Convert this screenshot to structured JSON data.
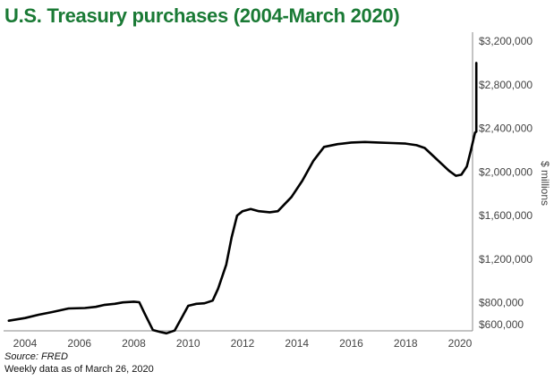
{
  "header": {
    "title": "U.S. Treasury purchases (2004-March 2020)"
  },
  "footer": {
    "source": "Source: FRED",
    "note": "Weekly data as of March 26, 2020"
  },
  "chart_data": {
    "type": "line",
    "ylabel": "$ millions",
    "xlim": [
      2003.4,
      2020.65
    ],
    "ylim": [
      520000,
      3200000
    ],
    "y_ticks": [
      {
        "value": 600000,
        "label": "$600,000"
      },
      {
        "value": 800000,
        "label": "$800,000"
      },
      {
        "value": 1200000,
        "label": "$1,200,000"
      },
      {
        "value": 1600000,
        "label": "$1,600,000"
      },
      {
        "value": 2000000,
        "label": "$2,000,000"
      },
      {
        "value": 2400000,
        "label": "$2,400,000"
      },
      {
        "value": 2800000,
        "label": "$2,800,000"
      },
      {
        "value": 3200000,
        "label": "$3,200,000"
      }
    ],
    "x_ticks": [
      {
        "value": 2004,
        "label": "2004"
      },
      {
        "value": 2006,
        "label": "2006"
      },
      {
        "value": 2008,
        "label": "2008"
      },
      {
        "value": 2010,
        "label": "2010"
      },
      {
        "value": 2012,
        "label": "2012"
      },
      {
        "value": 2014,
        "label": "2014"
      },
      {
        "value": 2016,
        "label": "2016"
      },
      {
        "value": 2018,
        "label": "2018"
      },
      {
        "value": 2020,
        "label": "2020"
      }
    ],
    "series": [
      {
        "color": "#000000",
        "points": [
          [
            2003.4,
            635000
          ],
          [
            2004.0,
            660000
          ],
          [
            2004.5,
            690000
          ],
          [
            2005.0,
            715000
          ],
          [
            2005.6,
            748000
          ],
          [
            2006.2,
            752000
          ],
          [
            2006.6,
            762000
          ],
          [
            2006.9,
            780000
          ],
          [
            2007.3,
            790000
          ],
          [
            2007.6,
            803000
          ],
          [
            2008.0,
            810000
          ],
          [
            2008.2,
            805000
          ],
          [
            2008.4,
            700000
          ],
          [
            2008.7,
            550000
          ],
          [
            2009.0,
            530000
          ],
          [
            2009.2,
            520000
          ],
          [
            2009.5,
            545000
          ],
          [
            2009.8,
            680000
          ],
          [
            2010.0,
            772000
          ],
          [
            2010.3,
            790000
          ],
          [
            2010.6,
            795000
          ],
          [
            2010.9,
            820000
          ],
          [
            2011.1,
            930000
          ],
          [
            2011.4,
            1150000
          ],
          [
            2011.6,
            1400000
          ],
          [
            2011.8,
            1600000
          ],
          [
            2012.0,
            1640000
          ],
          [
            2012.3,
            1660000
          ],
          [
            2012.6,
            1640000
          ],
          [
            2013.0,
            1630000
          ],
          [
            2013.3,
            1640000
          ],
          [
            2013.8,
            1770000
          ],
          [
            2014.2,
            1920000
          ],
          [
            2014.6,
            2100000
          ],
          [
            2015.0,
            2230000
          ],
          [
            2015.5,
            2255000
          ],
          [
            2016.0,
            2270000
          ],
          [
            2016.5,
            2275000
          ],
          [
            2017.0,
            2270000
          ],
          [
            2017.5,
            2265000
          ],
          [
            2018.0,
            2260000
          ],
          [
            2018.4,
            2245000
          ],
          [
            2018.7,
            2220000
          ],
          [
            2019.0,
            2150000
          ],
          [
            2019.3,
            2080000
          ],
          [
            2019.6,
            2010000
          ],
          [
            2019.85,
            1965000
          ],
          [
            2020.05,
            1975000
          ],
          [
            2020.25,
            2050000
          ],
          [
            2020.4,
            2200000
          ],
          [
            2020.55,
            2360000
          ],
          [
            2020.6,
            2370000
          ],
          [
            2020.6,
            3000000
          ]
        ]
      }
    ]
  }
}
